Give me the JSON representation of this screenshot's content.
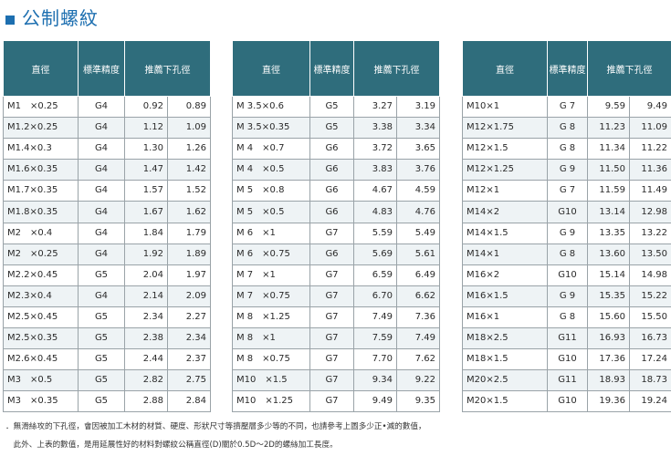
{
  "title": "公制螺紋",
  "headers": {
    "size": "直徑",
    "grade": "標準精度",
    "drill": "推薦下孔徑"
  },
  "tables": [
    {
      "rows": [
        {
          "size": "M1　×0.25",
          "grade": "G4",
          "d1": "0.92",
          "d2": "0.89"
        },
        {
          "size": "M1.2×0.25",
          "grade": "G4",
          "d1": "1.12",
          "d2": "1.09"
        },
        {
          "size": "M1.4×0.3",
          "grade": "G4",
          "d1": "1.30",
          "d2": "1.26"
        },
        {
          "size": "M1.6×0.35",
          "grade": "G4",
          "d1": "1.47",
          "d2": "1.42"
        },
        {
          "size": "M1.7×0.35",
          "grade": "G4",
          "d1": "1.57",
          "d2": "1.52"
        },
        {
          "size": "M1.8×0.35",
          "grade": "G4",
          "d1": "1.67",
          "d2": "1.62"
        },
        {
          "size": "M2　×0.4",
          "grade": "G4",
          "d1": "1.84",
          "d2": "1.79"
        },
        {
          "size": "M2　×0.25",
          "grade": "G4",
          "d1": "1.92",
          "d2": "1.89"
        },
        {
          "size": "M2.2×0.45",
          "grade": "G5",
          "d1": "2.04",
          "d2": "1.97"
        },
        {
          "size": "M2.3×0.4",
          "grade": "G4",
          "d1": "2.14",
          "d2": "2.09"
        },
        {
          "size": "M2.5×0.45",
          "grade": "G5",
          "d1": "2.34",
          "d2": "2.27"
        },
        {
          "size": "M2.5×0.35",
          "grade": "G5",
          "d1": "2.38",
          "d2": "2.34"
        },
        {
          "size": "M2.6×0.45",
          "grade": "G5",
          "d1": "2.44",
          "d2": "2.37"
        },
        {
          "size": "M3　×0.5",
          "grade": "G5",
          "d1": "2.82",
          "d2": "2.75"
        },
        {
          "size": "M3　×0.35",
          "grade": "G5",
          "d1": "2.88",
          "d2": "2.84"
        }
      ]
    },
    {
      "rows": [
        {
          "size": "M 3.5×0.6",
          "grade": "G5",
          "d1": "3.27",
          "d2": "3.19"
        },
        {
          "size": "M 3.5×0.35",
          "grade": "G5",
          "d1": "3.38",
          "d2": "3.34"
        },
        {
          "size": "M 4　×0.7",
          "grade": "G6",
          "d1": "3.72",
          "d2": "3.65"
        },
        {
          "size": "M 4　×0.5",
          "grade": "G6",
          "d1": "3.83",
          "d2": "3.76"
        },
        {
          "size": "M 5　×0.8",
          "grade": "G6",
          "d1": "4.67",
          "d2": "4.59"
        },
        {
          "size": "M 5　×0.5",
          "grade": "G6",
          "d1": "4.83",
          "d2": "4.76"
        },
        {
          "size": "M 6　×1",
          "grade": "G7",
          "d1": "5.59",
          "d2": "5.49"
        },
        {
          "size": "M 6　×0.75",
          "grade": "G6",
          "d1": "5.69",
          "d2": "5.61"
        },
        {
          "size": "M 7　×1",
          "grade": "G7",
          "d1": "6.59",
          "d2": "6.49"
        },
        {
          "size": "M 7　×0.75",
          "grade": "G7",
          "d1": "6.70",
          "d2": "6.62"
        },
        {
          "size": "M 8　×1.25",
          "grade": "G7",
          "d1": "7.49",
          "d2": "7.36"
        },
        {
          "size": "M 8　×1",
          "grade": "G7",
          "d1": "7.59",
          "d2": "7.49"
        },
        {
          "size": "M 8　×0.75",
          "grade": "G7",
          "d1": "7.70",
          "d2": "7.62"
        },
        {
          "size": "M10　×1.5",
          "grade": "G7",
          "d1": "9.34",
          "d2": "9.22"
        },
        {
          "size": "M10　×1.25",
          "grade": "G7",
          "d1": "9.49",
          "d2": "9.35"
        }
      ]
    },
    {
      "rows": [
        {
          "size": "M10×1",
          "grade": "G 7",
          "d1": "9.59",
          "d2": "9.49"
        },
        {
          "size": "M12×1.75",
          "grade": "G 8",
          "d1": "11.23",
          "d2": "11.09"
        },
        {
          "size": "M12×1.5",
          "grade": "G 8",
          "d1": "11.34",
          "d2": "11.22"
        },
        {
          "size": "M12×1.25",
          "grade": "G 9",
          "d1": "11.50",
          "d2": "11.36"
        },
        {
          "size": "M12×1",
          "grade": "G 7",
          "d1": "11.59",
          "d2": "11.49"
        },
        {
          "size": "M14×2",
          "grade": "G10",
          "d1": "13.14",
          "d2": "12.98"
        },
        {
          "size": "M14×1.5",
          "grade": "G 9",
          "d1": "13.35",
          "d2": "13.22"
        },
        {
          "size": "M14×1",
          "grade": "G 8",
          "d1": "13.60",
          "d2": "13.50"
        },
        {
          "size": "M16×2",
          "grade": "G10",
          "d1": "15.14",
          "d2": "14.98"
        },
        {
          "size": "M16×1.5",
          "grade": "G 9",
          "d1": "15.35",
          "d2": "15.22"
        },
        {
          "size": "M16×1",
          "grade": "G 8",
          "d1": "15.60",
          "d2": "15.50"
        },
        {
          "size": "M18×2.5",
          "grade": "G11",
          "d1": "16.93",
          "d2": "16.73"
        },
        {
          "size": "M18×1.5",
          "grade": "G10",
          "d1": "17.36",
          "d2": "17.24"
        },
        {
          "size": "M20×2.5",
          "grade": "G11",
          "d1": "18.93",
          "d2": "18.73"
        },
        {
          "size": "M20×1.5",
          "grade": "G10",
          "d1": "19.36",
          "d2": "19.24"
        }
      ]
    }
  ],
  "notes": [
    "．無滑絲攻的下孔徑，會因被加工木材的材質、硬度、形狀尺寸等擠壓層多少等的不同，也請參考上圖多少正•減的數值，",
    "　此外、上表的數值，是用延展性好的材料對螺紋公稱直徑(D)關於0.5D～2D的螺絲加工長度。"
  ]
}
